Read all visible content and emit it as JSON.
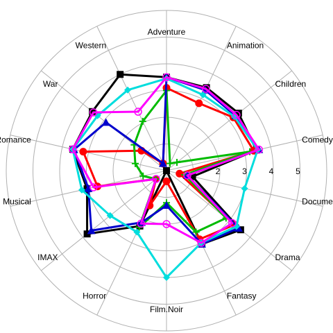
{
  "chart_data": {
    "type": "radar",
    "categories": [
      "Adventure",
      "Animation",
      "Children",
      "Comedy",
      "Documentary",
      "Drama",
      "Fantasy",
      "Film.Noir",
      "Horror",
      "IMAX",
      "Musical",
      "Romance",
      "War",
      "Western"
    ],
    "r_ticks": [
      "1",
      "2",
      "3",
      "4",
      "5"
    ],
    "r_tick_values": [
      1,
      2,
      3,
      4,
      5
    ],
    "rlim": [
      0,
      5
    ],
    "grid": true,
    "series": [
      {
        "color": "#000000",
        "marker": "square",
        "values": [
          3.5,
          3.45,
          3.45,
          3.45,
          1.0,
          3.55,
          3.05,
          0.0,
          2.3,
          3.8,
          3.05,
          3.6,
          3.55,
          4.0
        ]
      },
      {
        "color": "#ff0000",
        "marker": "circle",
        "values": [
          3.1,
          2.8,
          3.2,
          3.35,
          0.5,
          3.25,
          2.85,
          0.4,
          1.45,
          0.5,
          2.65,
          3.2,
          1.2,
          0.3
        ]
      },
      {
        "color": "#00bb00",
        "marker": "plus",
        "values": [
          3.0,
          0.3,
          0.5,
          3.2,
          0.7,
          2.85,
          2.55,
          1.2,
          2.35,
          0.5,
          0.9,
          1.2,
          1.55,
          2.05
        ]
      },
      {
        "color": "#0000cc",
        "marker": "triangle",
        "values": [
          3.5,
          3.35,
          3.3,
          3.55,
          0.8,
          3.45,
          3.05,
          1.3,
          2.15,
          3.6,
          3.0,
          3.55,
          2.9,
          0.3
        ]
      },
      {
        "color": "#00dddd",
        "marker": "diamond",
        "values": [
          3.45,
          3.15,
          3.25,
          3.5,
          3.0,
          3.35,
          3.0,
          4.0,
          2.55,
          2.7,
          3.25,
          3.6,
          3.3,
          3.35
        ]
      },
      {
        "color": "#ff00ff",
        "marker": "open-circle",
        "values": [
          3.5,
          3.4,
          3.35,
          3.55,
          0.8,
          3.15,
          3.0,
          2.0,
          2.2,
          0.5,
          2.8,
          3.6,
          3.5,
          2.45
        ]
      }
    ]
  }
}
